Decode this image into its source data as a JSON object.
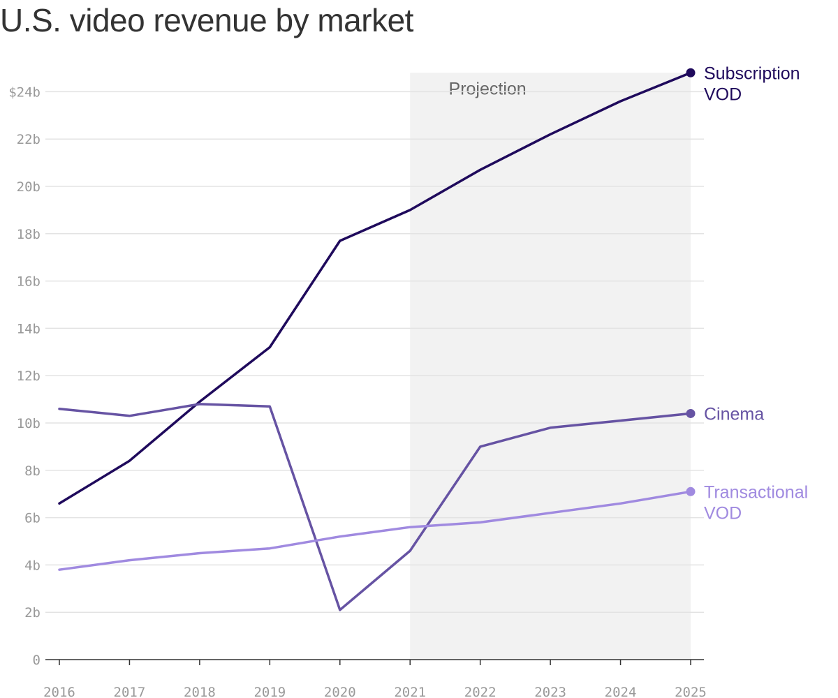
{
  "title": "U.S. video revenue by market",
  "chart_data": {
    "type": "line",
    "title": "U.S. video revenue by market",
    "x": [
      2016,
      2017,
      2018,
      2019,
      2020,
      2021,
      2022,
      2023,
      2024,
      2025
    ],
    "y_ticks": [
      "0",
      "2b",
      "4b",
      "6b",
      "8b",
      "10b",
      "12b",
      "14b",
      "16b",
      "18b",
      "20b",
      "22b",
      "$24b"
    ],
    "ylim": [
      0,
      24.8
    ],
    "grid": true,
    "projection": {
      "label": "Projection",
      "from": 2021,
      "to": 2025
    },
    "series": [
      {
        "name": "Subscription VOD",
        "label_lines": [
          "Subscription",
          "VOD"
        ],
        "color": "#1f0a5c",
        "values": [
          6.6,
          8.4,
          10.9,
          13.2,
          17.7,
          19.0,
          20.7,
          22.2,
          23.6,
          24.8
        ]
      },
      {
        "name": "Cinema",
        "label_lines": [
          "Cinema"
        ],
        "color": "#6653a3",
        "values": [
          10.6,
          10.3,
          10.8,
          10.7,
          2.1,
          4.6,
          9.0,
          9.8,
          10.1,
          10.4
        ]
      },
      {
        "name": "Transactional VOD",
        "label_lines": [
          "Transactional",
          "VOD"
        ],
        "color": "#a08ae0",
        "values": [
          3.8,
          4.2,
          4.5,
          4.7,
          5.2,
          5.6,
          5.8,
          6.2,
          6.6,
          7.1
        ]
      }
    ]
  }
}
